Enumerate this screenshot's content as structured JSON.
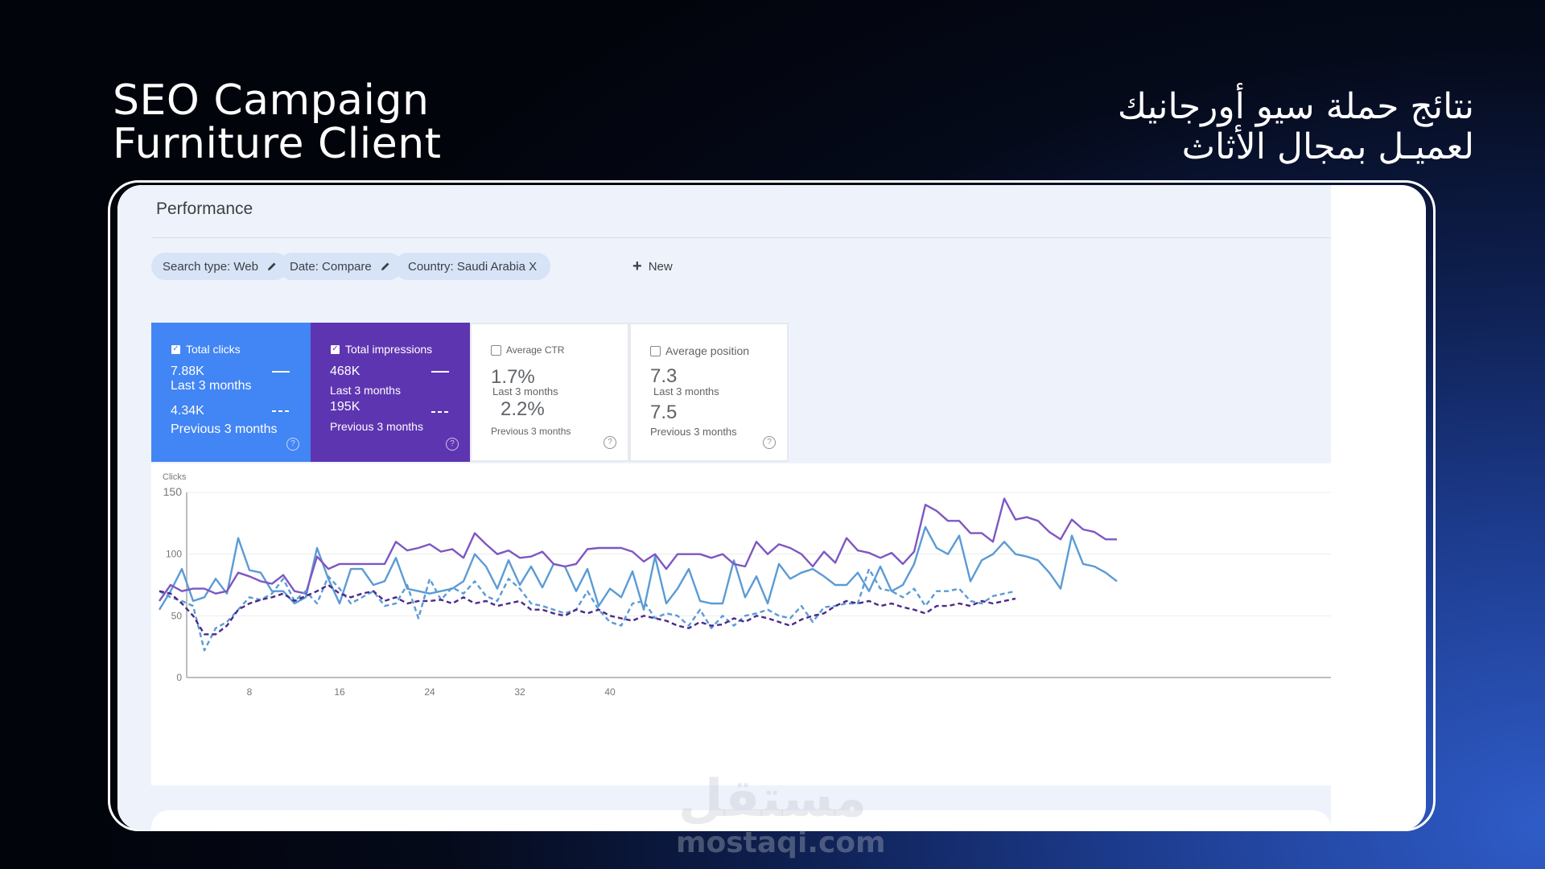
{
  "slide": {
    "title_en_line1": "SEO Campaign",
    "title_en_line2": "Furniture Client",
    "title_ar_line1": "نتائج حملة سيو أورجانيك",
    "title_ar_line2": "لعميـل بمجال الأثاث",
    "watermark_ar": "مستقل",
    "watermark_en": "mostaqi.com"
  },
  "performance": {
    "title": "Performance",
    "filters": [
      {
        "label": "Search type: Web",
        "icon": "pencil-icon"
      },
      {
        "label": "Date: Compare",
        "icon": "pencil-icon"
      },
      {
        "label": "Country: Saudi Arabia X",
        "icon": ""
      }
    ],
    "new_label": "New",
    "cards": [
      {
        "label": "Total clicks",
        "value_current": "7.88K",
        "period_current": "Last 3 months",
        "value_previous": "4.34K",
        "period_previous": "Previous 3 months",
        "checked": true,
        "color": "#4285f4"
      },
      {
        "label": "Total impressions",
        "value_current": "468K",
        "period_current": "Last 3 months",
        "value_previous": "195K",
        "period_previous": "Previous 3 months",
        "checked": true,
        "color": "#5e35b1"
      },
      {
        "label": "Average CTR",
        "value_current": "1.7%",
        "period_current": "Last 3 months",
        "value_previous": "2.2%",
        "period_previous": "Previous 3 months",
        "checked": false,
        "color": "#ffffff"
      },
      {
        "label": "Average position",
        "value_current": "7.3",
        "period_current": "Last 3 months",
        "value_previous": "7.5",
        "period_previous": "Previous 3 months",
        "checked": false,
        "color": "#ffffff"
      }
    ]
  },
  "chart_data": {
    "type": "line",
    "ylabel": "Clicks",
    "ylim": [
      0,
      150
    ],
    "yticks": [
      "150",
      "100",
      "50",
      "0"
    ],
    "xticks": [
      "8",
      "16",
      "24",
      "32",
      "40"
    ],
    "grid": true,
    "series": [
      {
        "style": "clicks-current",
        "color": "#5b9bd5",
        "dashed": false,
        "values": [
          55,
          70,
          88,
          62,
          65,
          80,
          68,
          113,
          87,
          85,
          70,
          70,
          60,
          65,
          105,
          80,
          60,
          88,
          88,
          75,
          78,
          97,
          72,
          70,
          68,
          70,
          72,
          78,
          100,
          90,
          72,
          95,
          75,
          90,
          73,
          92,
          90,
          70,
          88,
          58,
          72,
          65,
          86,
          55,
          98,
          60,
          72,
          88,
          62,
          60,
          60,
          95,
          65,
          82,
          60,
          92,
          80,
          85,
          88,
          82,
          75,
          75,
          85,
          70,
          90,
          70,
          75,
          92,
          122,
          105,
          100,
          115,
          78,
          95,
          100,
          110,
          100,
          98,
          95,
          85,
          72,
          115,
          92,
          90,
          85,
          78
        ]
      },
      {
        "style": "impressions-current",
        "color": "#7e57c2",
        "dashed": false,
        "values": [
          62,
          75,
          70,
          72,
          72,
          68,
          70,
          85,
          82,
          78,
          76,
          83,
          70,
          68,
          98,
          88,
          92,
          92,
          92,
          92,
          92,
          110,
          103,
          105,
          108,
          102,
          104,
          97,
          117,
          108,
          100,
          103,
          97,
          98,
          102,
          92,
          90,
          92,
          104,
          105,
          105,
          105,
          102,
          94,
          100,
          88,
          100,
          100,
          100,
          97,
          100,
          92,
          90,
          110,
          100,
          108,
          105,
          100,
          90,
          102,
          93,
          113,
          103,
          101,
          97,
          101,
          92,
          102,
          140,
          135,
          127,
          127,
          117,
          117,
          110,
          145,
          128,
          130,
          127,
          118,
          112,
          128,
          120,
          118,
          112,
          112
        ]
      },
      {
        "style": "clicks-previous",
        "color": "#5b9bd5",
        "dashed": true,
        "values": [
          70,
          65,
          62,
          58,
          22,
          40,
          45,
          55,
          65,
          63,
          68,
          80,
          62,
          70,
          60,
          82,
          72,
          60,
          65,
          70,
          58,
          60,
          75,
          48,
          80,
          63,
          73,
          68,
          78,
          66,
          62,
          80,
          72,
          60,
          58,
          55,
          52,
          55,
          70,
          55,
          45,
          42,
          60,
          62,
          48,
          52,
          50,
          42,
          55,
          40,
          50,
          42,
          50,
          52,
          55,
          50,
          48,
          58,
          45,
          57,
          58,
          60,
          60,
          88,
          72,
          70,
          65,
          72,
          58,
          70,
          70,
          72,
          62,
          60,
          66,
          68,
          70
        ]
      },
      {
        "style": "impressions-previous",
        "color": "#4a2a8a",
        "dashed": true,
        "values": [
          70,
          68,
          60,
          50,
          35,
          35,
          42,
          55,
          60,
          63,
          65,
          68,
          62,
          66,
          70,
          75,
          68,
          65,
          68,
          70,
          62,
          65,
          60,
          62,
          62,
          63,
          60,
          65,
          60,
          62,
          58,
          60,
          62,
          55,
          55,
          52,
          50,
          55,
          52,
          55,
          50,
          48,
          46,
          50,
          48,
          46,
          42,
          40,
          45,
          42,
          43,
          48,
          45,
          50,
          48,
          45,
          42,
          47,
          50,
          52,
          58,
          62,
          60,
          62,
          58,
          60,
          57,
          55,
          52,
          58,
          58,
          60,
          58,
          62,
          60,
          62,
          64
        ]
      }
    ]
  }
}
